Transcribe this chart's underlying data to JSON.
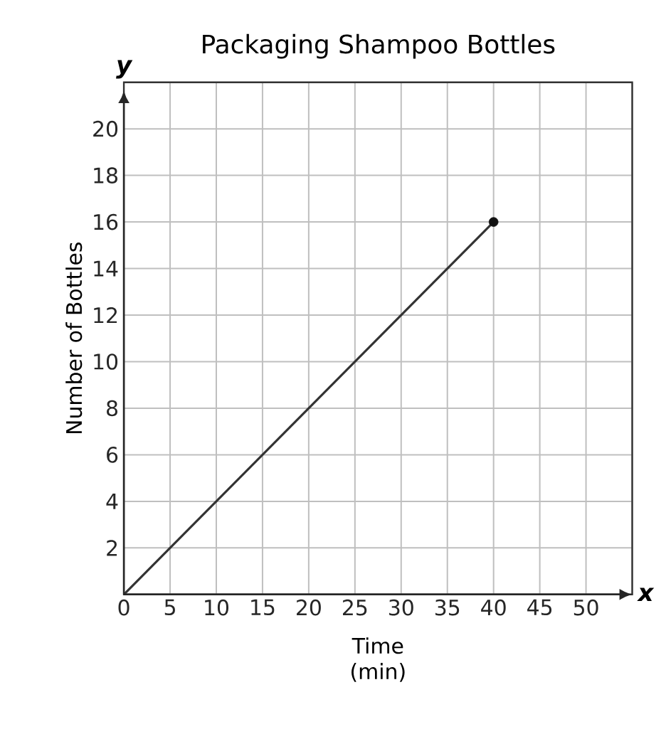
{
  "chart_data": {
    "type": "line",
    "title": "Packaging Shampoo Bottles",
    "xlabel": "Time (min)",
    "ylabel": "Number of Bottles",
    "xlim": [
      0,
      55
    ],
    "ylim": [
      0,
      22
    ],
    "xticks": [
      0,
      5,
      10,
      15,
      20,
      25,
      30,
      35,
      40,
      45,
      50,
      {
        "value": 55,
        "label": null
      }
    ],
    "yticks": [
      {
        "value": 0,
        "label": null
      },
      2,
      4,
      6,
      8,
      10,
      12,
      14,
      16,
      18,
      20,
      {
        "value": 22,
        "label": null
      }
    ],
    "grid": true,
    "annotations": [
      "y",
      "x"
    ],
    "x": [
      0,
      40
    ],
    "series": [
      {
        "color": "#333333",
        "values": [
          0,
          16
        ],
        "marker": "none",
        "line_style": "solid"
      },
      {
        "type": "scatter",
        "color": "#111111",
        "x": [
          40
        ],
        "values": [
          16
        ],
        "marker": "circle"
      }
    ]
  }
}
